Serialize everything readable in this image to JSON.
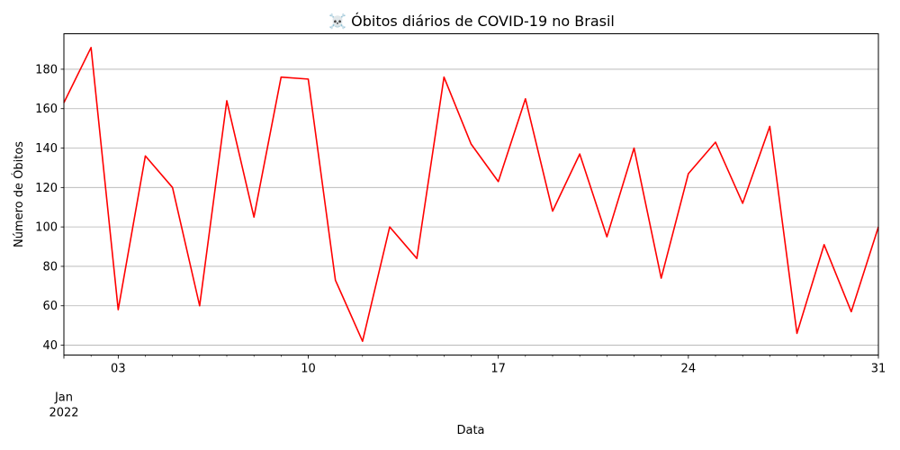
{
  "chart_data": {
    "type": "line",
    "title": "☠️ Óbitos diários de COVID-19 no Brasil",
    "xlabel": "Data",
    "ylabel": "Número de Óbitos",
    "x": [
      "2022-01-01",
      "2022-01-02",
      "2022-01-03",
      "2022-01-04",
      "2022-01-05",
      "2022-01-06",
      "2022-01-07",
      "2022-01-08",
      "2022-01-09",
      "2022-01-10",
      "2022-01-11",
      "2022-01-12",
      "2022-01-13",
      "2022-01-14",
      "2022-01-15",
      "2022-01-16",
      "2022-01-17",
      "2022-01-18",
      "2022-01-19",
      "2022-01-20",
      "2022-01-21",
      "2022-01-22",
      "2022-01-23",
      "2022-01-24",
      "2022-01-25",
      "2022-01-26",
      "2022-01-27",
      "2022-01-28",
      "2022-01-29",
      "2022-01-30",
      "2022-01-31"
    ],
    "series": [
      {
        "values": [
          163,
          191,
          58,
          136,
          120,
          60,
          164,
          105,
          176,
          175,
          73,
          42,
          100,
          84,
          176,
          142,
          123,
          165,
          108,
          137,
          95,
          140,
          74,
          127,
          143,
          112,
          151,
          46,
          91,
          57,
          100
        ],
        "color": "#ff0000"
      }
    ],
    "xlim": [
      "2022-01-01",
      "2022-01-31"
    ],
    "ylim": [
      35,
      198
    ],
    "x_ticks": [
      {
        "date": "2022-01-03",
        "label": "03"
      },
      {
        "date": "2022-01-10",
        "label": "10"
      },
      {
        "date": "2022-01-17",
        "label": "17"
      },
      {
        "date": "2022-01-24",
        "label": "24"
      },
      {
        "date": "2022-01-31",
        "label": "31"
      }
    ],
    "x_month_label": {
      "date": "2022-01-01",
      "month": "Jan",
      "year": "2022"
    },
    "y_ticks": [
      40,
      60,
      80,
      100,
      120,
      140,
      160,
      180
    ],
    "grid": "y-axis only",
    "grid_color": "#b0b0b0",
    "legend": "none"
  }
}
